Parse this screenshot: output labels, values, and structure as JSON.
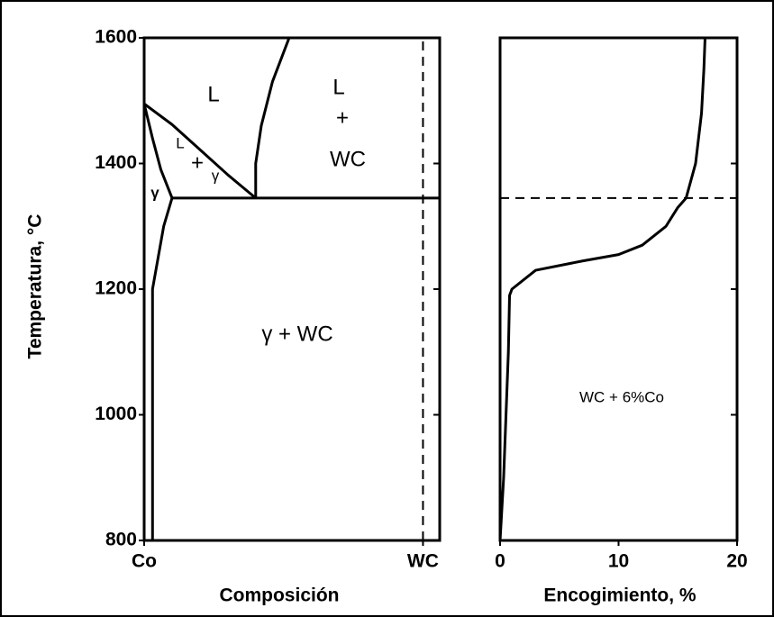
{
  "chart_data": [
    {
      "type": "line",
      "xlabel": "Composición",
      "ylabel": "Temperatura, °C",
      "xlim": [
        0,
        106
      ],
      "ylim": [
        800,
        1600
      ],
      "xticks": [
        {
          "value": 0,
          "label": "Co"
        },
        {
          "value": 100,
          "label": "WC"
        }
      ],
      "yticks": [
        800,
        1000,
        1200,
        1400,
        1600
      ],
      "annotations": [
        "L",
        "L",
        "+",
        "WC",
        "L",
        "+",
        "γ",
        "γ",
        "γ  + WC"
      ],
      "series": [
        {
          "color": "#000",
          "x": [
            0,
            10,
            20,
            30,
            40
          ],
          "values": [
            1495,
            1462,
            1422,
            1382,
            1345
          ]
        },
        {
          "color": "#000",
          "x": [
            0,
            3,
            6,
            10
          ],
          "values": [
            1495,
            1440,
            1390,
            1345
          ]
        },
        {
          "color": "#000",
          "x": [
            10,
            7,
            5,
            3,
            3
          ],
          "values": [
            1345,
            1300,
            1250,
            1200,
            800
          ]
        },
        {
          "color": "#000",
          "x": [
            40,
            40,
            42,
            46,
            52
          ],
          "values": [
            1345,
            1400,
            1460,
            1530,
            1600
          ]
        },
        {
          "color": "#000",
          "x": [
            10,
            106
          ],
          "values": [
            1345,
            1345
          ]
        },
        {
          "color": "#000",
          "dashed": true,
          "x": [
            100,
            100
          ],
          "values": [
            800,
            1600
          ]
        }
      ]
    },
    {
      "type": "line",
      "xlabel": "Encogimiento, %",
      "xlim": [
        0,
        20
      ],
      "ylim": [
        800,
        1600
      ],
      "xticks": [
        0,
        10,
        20
      ],
      "yticks": [
        800,
        1000,
        1200,
        1400,
        1600
      ],
      "annotations": [
        "WC + 6%Co"
      ],
      "series": [
        {
          "color": "#000",
          "x": [
            0,
            0.3,
            0.5,
            0.7,
            0.8,
            1,
            3,
            7,
            10,
            12,
            14,
            15,
            15.7,
            16.5,
            17,
            17.2,
            17.3
          ],
          "values": [
            800,
            900,
            1000,
            1100,
            1190,
            1200,
            1230,
            1245,
            1255,
            1270,
            1300,
            1330,
            1345,
            1400,
            1480,
            1550,
            1600
          ]
        },
        {
          "color": "#000",
          "dashed": true,
          "x": [
            0,
            20
          ],
          "values": [
            1345,
            1345
          ]
        }
      ]
    }
  ]
}
